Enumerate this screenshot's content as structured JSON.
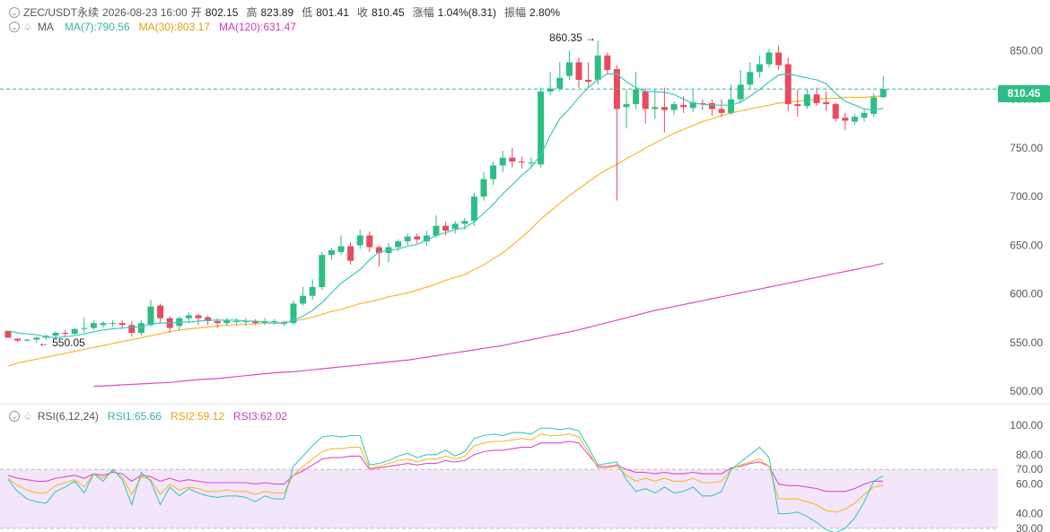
{
  "header": {
    "symbol": "ZEC/USDT永续",
    "datetime": "2026-08-23 16:00",
    "open_label": "开",
    "open": "802.15",
    "high_label": "高",
    "high": "823.89",
    "low_label": "低",
    "low": "801.41",
    "close_label": "收",
    "close": "810.45",
    "change_label": "涨幅",
    "change": "1.04%(8.31)",
    "amp_label": "振幅",
    "amp": "2.80%"
  },
  "ma_legend": {
    "label": "MA",
    "ma7": "MA(7):790.56",
    "ma30": "MA(30):803.17",
    "ma120": "MA(120):631.47"
  },
  "rsi_legend": {
    "label": "RSI(6,12,24)",
    "rsi1": "RSI1:65.66",
    "rsi2": "RSI2:59.12",
    "rsi3": "RSI3:62.02"
  },
  "current_price": "810.45",
  "colors": {
    "up": "#2ebd85",
    "down": "#e84a5f",
    "ma7": "#3cc8c0",
    "ma30": "#f5b82e",
    "ma120": "#d64fc6",
    "rsi1": "#3cc8c0",
    "rsi2": "#f5b82e",
    "rsi3": "#d64fc6"
  },
  "chart_data": {
    "type": "candlestick",
    "price_axis": {
      "ticks": [
        850,
        800,
        750,
        700,
        650,
        600,
        550,
        500
      ],
      "tick_labels": [
        "850.00",
        "800.00",
        "750.00",
        "700.00",
        "650.00",
        "600.00",
        "550.00",
        "500.00"
      ],
      "range": [
        489,
        902
      ]
    },
    "rsi_axis": {
      "ticks": [
        100,
        80,
        70,
        60,
        40,
        30
      ],
      "tick_labels": [
        "100.00",
        "80.00",
        "70.00",
        "60.00",
        "40.00",
        "30.00"
      ],
      "range": [
        27.5,
        108.5
      ],
      "band": [
        30,
        70
      ]
    },
    "annotations": {
      "high": {
        "value": 860.35,
        "label": "860.35",
        "index": 62
      },
      "low": {
        "value": 550.05,
        "label": "550.05",
        "index": 3
      }
    },
    "candles": [
      [
        562,
        555,
        562,
        555
      ],
      [
        554,
        552,
        554,
        550.5
      ],
      [
        552,
        553,
        554,
        551
      ],
      [
        553,
        555,
        556,
        550.05
      ],
      [
        555,
        557,
        558,
        553
      ],
      [
        557,
        560,
        562,
        554
      ],
      [
        560,
        559,
        563,
        556
      ],
      [
        559,
        564,
        565,
        557
      ],
      [
        564,
        565,
        576,
        560
      ],
      [
        565,
        570,
        573,
        563
      ],
      [
        568,
        570,
        572,
        565
      ],
      [
        570,
        570,
        573,
        566
      ],
      [
        570,
        568,
        573,
        564
      ],
      [
        568,
        560,
        572,
        556
      ],
      [
        560,
        570,
        573,
        557
      ],
      [
        568,
        587,
        594,
        566
      ],
      [
        588,
        575,
        590,
        570
      ],
      [
        575,
        565,
        577,
        560
      ],
      [
        567,
        575,
        577,
        562
      ],
      [
        575,
        578,
        581,
        570
      ],
      [
        578,
        575,
        580,
        568
      ],
      [
        576,
        572,
        578,
        568
      ],
      [
        572,
        570,
        575,
        565
      ],
      [
        570,
        573,
        576,
        567
      ],
      [
        572,
        572,
        575,
        568
      ],
      [
        572,
        572,
        575,
        567
      ],
      [
        572,
        570,
        574,
        568
      ],
      [
        570,
        572,
        575,
        568
      ],
      [
        571,
        572,
        574,
        568
      ],
      [
        570,
        570,
        572,
        567
      ],
      [
        570,
        590,
        593,
        568
      ],
      [
        590,
        598,
        607,
        588
      ],
      [
        598,
        607,
        615,
        594
      ],
      [
        607,
        640,
        643,
        604
      ],
      [
        640,
        645,
        647,
        635
      ],
      [
        643,
        649,
        660,
        640
      ],
      [
        649,
        634,
        653,
        630
      ],
      [
        650,
        660,
        666,
        646
      ],
      [
        660,
        648,
        664,
        643
      ],
      [
        648,
        642,
        650,
        628
      ],
      [
        642,
        648,
        652,
        632
      ],
      [
        648,
        654,
        656,
        644
      ],
      [
        654,
        659,
        662,
        650
      ],
      [
        659,
        656,
        662,
        652
      ],
      [
        654,
        660,
        665,
        649
      ],
      [
        660,
        670,
        681,
        658
      ],
      [
        670,
        665,
        674,
        660
      ],
      [
        667,
        672,
        675,
        662
      ],
      [
        672,
        675,
        678,
        666
      ],
      [
        675,
        700,
        704,
        670
      ],
      [
        700,
        718,
        725,
        696
      ],
      [
        718,
        732,
        736,
        712
      ],
      [
        732,
        740,
        747,
        725
      ],
      [
        740,
        736,
        750,
        730
      ],
      [
        736,
        735,
        741,
        729
      ],
      [
        735,
        735,
        740,
        730
      ],
      [
        733,
        808,
        812,
        730
      ],
      [
        808,
        811,
        828,
        804
      ],
      [
        811,
        822,
        838,
        808
      ],
      [
        824,
        838,
        850,
        820
      ],
      [
        838,
        820,
        843,
        812
      ],
      [
        820,
        818,
        838,
        812
      ],
      [
        820,
        845,
        860.35,
        815
      ],
      [
        845,
        830,
        848,
        826
      ],
      [
        831,
        790,
        835,
        696
      ],
      [
        792,
        795,
        810,
        770
      ],
      [
        795,
        810,
        828,
        790
      ],
      [
        808,
        790,
        812,
        775
      ],
      [
        790,
        792,
        810,
        780
      ],
      [
        792,
        789,
        812,
        766
      ],
      [
        789,
        795,
        798,
        784
      ],
      [
        794,
        792,
        803,
        786
      ],
      [
        791,
        797,
        810,
        787
      ],
      [
        796,
        795,
        800,
        789
      ],
      [
        796,
        790,
        800,
        783
      ],
      [
        790,
        786,
        800,
        782
      ],
      [
        786,
        800,
        815,
        784
      ],
      [
        800,
        815,
        830,
        796
      ],
      [
        815,
        828,
        838,
        810
      ],
      [
        828,
        836,
        845,
        822
      ],
      [
        836,
        848,
        852,
        833
      ],
      [
        848,
        835,
        855,
        830
      ],
      [
        836,
        795,
        843,
        788
      ],
      [
        795,
        793,
        810,
        782
      ],
      [
        793,
        805,
        810,
        790
      ],
      [
        805,
        796,
        812,
        793
      ],
      [
        797,
        795,
        808,
        788
      ],
      [
        795,
        780,
        797,
        777
      ],
      [
        781,
        778,
        786,
        768
      ],
      [
        777,
        782,
        785,
        774
      ],
      [
        781,
        786,
        790,
        777
      ],
      [
        785,
        802,
        806,
        782
      ],
      [
        802.15,
        810.45,
        823.89,
        801.41
      ]
    ],
    "ma7": [
      562,
      560,
      559,
      558,
      556,
      555,
      556,
      557,
      559,
      561,
      563,
      564,
      565,
      566,
      566,
      569,
      570,
      570,
      571,
      571,
      572,
      573,
      573,
      573,
      573,
      572,
      572,
      571,
      570,
      570,
      573,
      577,
      583,
      591,
      601,
      611,
      618,
      625,
      635,
      643,
      645,
      646,
      649,
      651,
      655,
      660,
      663,
      666,
      668,
      674,
      683,
      692,
      703,
      712,
      722,
      730,
      743,
      763,
      780,
      790,
      802,
      812,
      820,
      826,
      826,
      818,
      812,
      808,
      808,
      807,
      805,
      800,
      796,
      795,
      794,
      794,
      794,
      797,
      803,
      810,
      818,
      825,
      826,
      824,
      822,
      820,
      816,
      806,
      798,
      794,
      790,
      789,
      790.56
    ],
    "ma30": [
      526,
      529,
      531,
      533,
      535,
      537,
      539,
      541,
      543,
      545,
      547,
      549,
      551,
      553,
      555,
      557,
      559,
      561,
      563,
      564,
      565,
      566,
      567,
      568,
      568,
      569,
      569,
      570,
      570,
      571,
      572,
      574,
      576,
      579,
      582,
      584,
      587,
      590,
      592,
      594,
      597,
      599,
      601,
      604,
      607,
      610,
      614,
      617,
      620,
      625,
      630,
      636,
      642,
      650,
      658,
      667,
      677,
      685,
      693,
      701,
      708,
      715,
      722,
      728,
      733,
      739,
      744,
      750,
      755,
      760,
      765,
      769,
      773,
      777,
      780,
      783,
      786,
      788,
      790,
      792,
      794,
      796,
      797,
      798,
      799,
      800,
      801,
      801,
      802,
      802,
      802,
      803,
      803.17
    ],
    "ma120": [
      505,
      505.5,
      506,
      506.5,
      507,
      507.5,
      508,
      508.5,
      509,
      510,
      511,
      512,
      512.5,
      513,
      514,
      515,
      516,
      517,
      518,
      519,
      519.5,
      520,
      521,
      522,
      523,
      524,
      525,
      526,
      527,
      528,
      529,
      530,
      531,
      532,
      533.5,
      535,
      536.5,
      538,
      539.5,
      541,
      542.5,
      544,
      545.5,
      547,
      549,
      551,
      553,
      555,
      557,
      559,
      561,
      563,
      565.5,
      568,
      570.5,
      573,
      575.5,
      578,
      580.5,
      583,
      585,
      587,
      589,
      591,
      593,
      595,
      597,
      599,
      601,
      603,
      605,
      607,
      609,
      611,
      613,
      615,
      617,
      619,
      621,
      623,
      625,
      627,
      629,
      631.47
    ],
    "rsi1": [
      63,
      55,
      50,
      48,
      47,
      55,
      58,
      62,
      54,
      67,
      62,
      70,
      63,
      46,
      68,
      62,
      46,
      58,
      52,
      57,
      54,
      52,
      51,
      52,
      52,
      51,
      48,
      52,
      50,
      50,
      72,
      79,
      86,
      92,
      93,
      92,
      93,
      93,
      73,
      74,
      76,
      79,
      81,
      78,
      80,
      80,
      83,
      79,
      82,
      91,
      93,
      94,
      93,
      95,
      95,
      94,
      98,
      98,
      97,
      98,
      96,
      85,
      73,
      74,
      75,
      63,
      55,
      57,
      54,
      58,
      54,
      55,
      58,
      52,
      52,
      55,
      70,
      75,
      80,
      85,
      78,
      40,
      40,
      41,
      38,
      34,
      29,
      27,
      30,
      37,
      48,
      62,
      65.66
    ],
    "rsi2": [
      64,
      59,
      56,
      54,
      54,
      59,
      61,
      63,
      58,
      67,
      64,
      69,
      65,
      53,
      65,
      63,
      53,
      60,
      56,
      58,
      57,
      55,
      55,
      56,
      55,
      55,
      53,
      55,
      54,
      54,
      66,
      72,
      77,
      82,
      84,
      84,
      85,
      85,
      71,
      72,
      74,
      76,
      77,
      75,
      77,
      77,
      79,
      77,
      79,
      86,
      88,
      89,
      89,
      90,
      91,
      90,
      94,
      93,
      93,
      94,
      92,
      82,
      71,
      71,
      72,
      66,
      62,
      64,
      62,
      64,
      62,
      62,
      64,
      61,
      61,
      62,
      70,
      73,
      75,
      77,
      72,
      50,
      50,
      50,
      48,
      46,
      42,
      41,
      43,
      47,
      53,
      58,
      59.12
    ],
    "rsi3": [
      66,
      64,
      63,
      62,
      62,
      64,
      65,
      66,
      64,
      67,
      66,
      68,
      67,
      62,
      66,
      65,
      62,
      64,
      62,
      63,
      62,
      61,
      61,
      61,
      61,
      61,
      60,
      61,
      60,
      60,
      66,
      69,
      73,
      77,
      78,
      78,
      79,
      79,
      70,
      71,
      72,
      73,
      74,
      73,
      74,
      74,
      76,
      75,
      76,
      80,
      82,
      83,
      83,
      84,
      85,
      85,
      88,
      88,
      88,
      89,
      88,
      80,
      72,
      72,
      73,
      70,
      68,
      68,
      67,
      68,
      67,
      67,
      68,
      67,
      67,
      67,
      71,
      72,
      74,
      75,
      72,
      60,
      59,
      59,
      58,
      57,
      55,
      55,
      55,
      57,
      60,
      62,
      62.02
    ]
  }
}
